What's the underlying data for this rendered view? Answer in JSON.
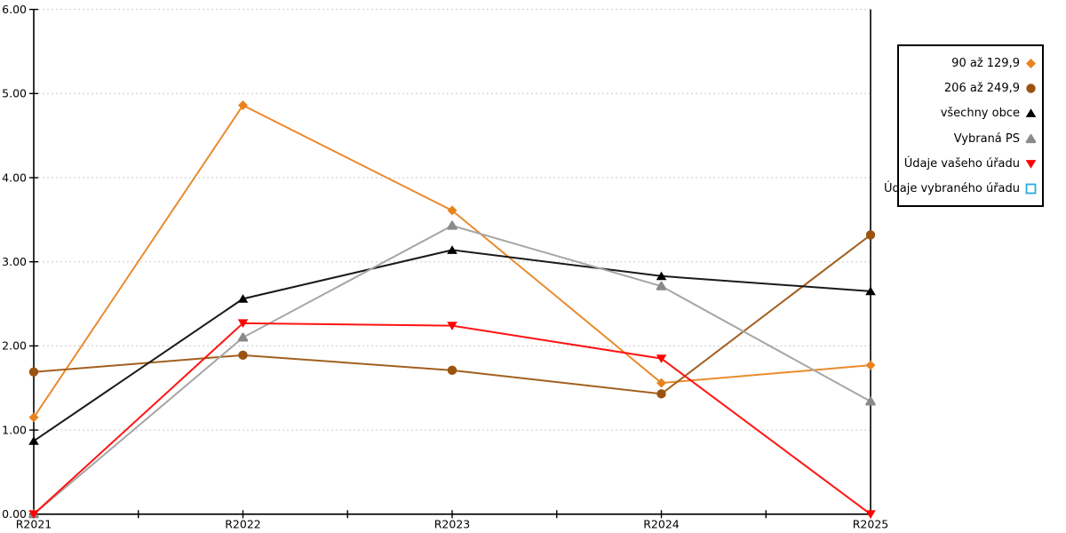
{
  "chart_data": {
    "type": "line",
    "title": "",
    "xlabel": "",
    "ylabel": "",
    "categories": [
      "R2021",
      "R2022",
      "R2023",
      "R2024",
      "R2025"
    ],
    "series": [
      {
        "name": "90 až 129,9",
        "marker": "diamond",
        "color": "#E8821E",
        "line_color": "#E98B2E",
        "values": [
          1.15,
          4.86,
          3.61,
          1.56,
          1.77
        ]
      },
      {
        "name": "206 až 249,9",
        "marker": "circle",
        "color": "#9C5310",
        "line_color": "#A2601F",
        "values": [
          1.69,
          1.89,
          1.71,
          1.43,
          3.32
        ]
      },
      {
        "name": "všechny obce",
        "marker": "triangle-up",
        "color": "#000000",
        "line_color": "#1A1A1A",
        "values": [
          0.87,
          2.56,
          3.14,
          2.83,
          2.65
        ]
      },
      {
        "name": "Vybraná PS",
        "marker": "triangle-up-rounded",
        "color": "#8A8A8A",
        "line_color": "#A6A6A6",
        "values": [
          0.0,
          2.1,
          3.43,
          2.71,
          1.34
        ]
      },
      {
        "name": "Údaje vašeho úřadu",
        "marker": "triangle-down",
        "color": "#FF0000",
        "line_color": "#FF1414",
        "values": [
          0.0,
          2.27,
          2.24,
          1.85,
          0.0
        ]
      },
      {
        "name": "Údaje vybraného úřadu",
        "marker": "square-outline",
        "color": "#29ABE2",
        "line_color": "#29ABE2",
        "values": []
      }
    ],
    "ylim": [
      0,
      6
    ],
    "ytick_labels": [
      "0.00",
      "1.00",
      "2.00",
      "3.00",
      "4.00",
      "5.00",
      "6.00"
    ],
    "grid": "horizontal-dotted",
    "gridline_color": "#C9C9C9",
    "axis_color": "#000000",
    "legend_position": "right"
  }
}
